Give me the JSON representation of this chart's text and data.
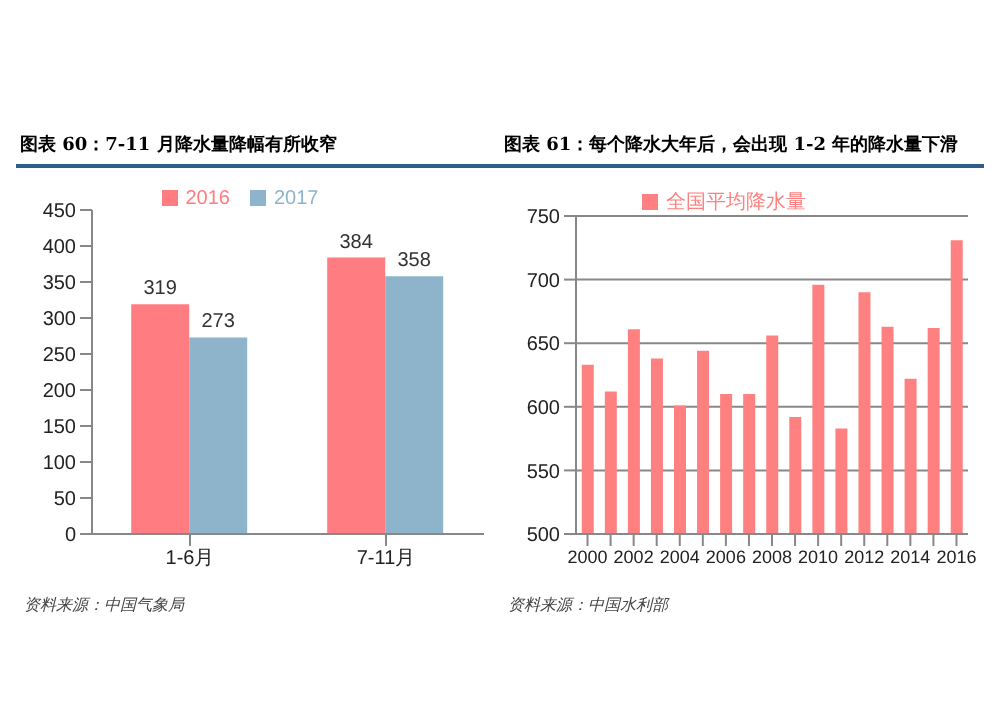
{
  "chart_data": [
    {
      "type": "bar",
      "title": "图表 60：7-11 月降水量降幅有所收窄",
      "categories": [
        "1-6月",
        "7-11月"
      ],
      "series": [
        {
          "name": "2016",
          "color": "#ff7c80",
          "values": [
            319,
            384
          ]
        },
        {
          "name": "2017",
          "color": "#8eb4cb",
          "values": [
            273,
            358
          ]
        }
      ],
      "ylim": [
        0,
        450
      ],
      "yticks": [
        0,
        50,
        100,
        150,
        200,
        250,
        300,
        350,
        400,
        450
      ],
      "data_labels": true,
      "legend": "top",
      "annotations": [
        "资料来源：中国气象局"
      ]
    },
    {
      "type": "bar",
      "title": "图表 61：每个降水大年后，会出现 1-2 年的降水量下滑",
      "categories": [
        "2000",
        null,
        "2002",
        null,
        "2004",
        null,
        "2006",
        null,
        "2008",
        null,
        "2010",
        null,
        "2012",
        null,
        "2014",
        null,
        "2016"
      ],
      "series": [
        {
          "name": "全国平均降水量",
          "color": "#ff8080",
          "values": [
            633,
            612,
            661,
            638,
            601,
            644,
            610,
            610,
            656,
            592,
            696,
            583,
            690,
            663,
            622,
            662,
            731
          ]
        }
      ],
      "ylim": [
        500,
        750
      ],
      "yticks": [
        500,
        550,
        600,
        650,
        700,
        750
      ],
      "grid": "y",
      "legend": "top",
      "annotations": [
        "资料来源：中国水利部"
      ]
    }
  ]
}
